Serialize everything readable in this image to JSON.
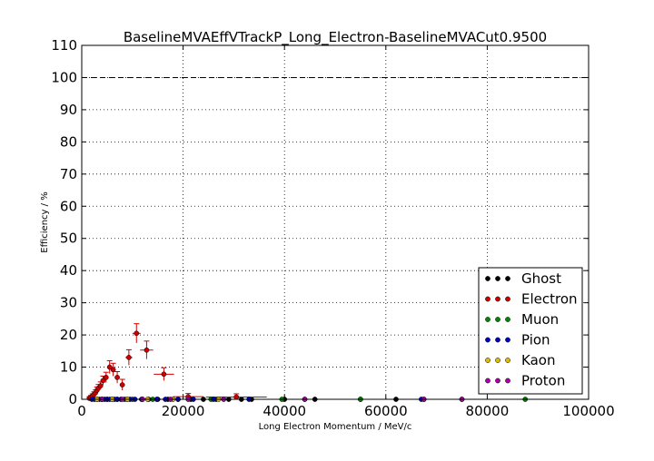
{
  "chart_data": {
    "type": "scatter",
    "title": "BaselineMVAEffVTrackP_Long_Electron-BaselineMVACut0.9500",
    "xlabel": "Long Electron Momentum / MeV/c",
    "ylabel": "Efficiency / %",
    "xlim": [
      0,
      100000
    ],
    "ylim": [
      0,
      110
    ],
    "xticks": [
      0,
      20000,
      40000,
      60000,
      80000,
      100000
    ],
    "xtick_labels": [
      "0",
      "20000",
      "40000",
      "60000",
      "80000",
      "100000"
    ],
    "yticks": [
      0,
      10,
      20,
      30,
      40,
      50,
      60,
      70,
      80,
      90,
      100,
      110
    ],
    "ytick_labels": [
      "0",
      "10",
      "20",
      "30",
      "40",
      "50",
      "60",
      "70",
      "80",
      "90",
      "100",
      "110"
    ],
    "grid": true,
    "reference_line": 100,
    "legend_position": "lower-right",
    "series": [
      {
        "name": "Ghost",
        "color": "#000000",
        "points": [
          {
            "x": 4000,
            "y": 0
          },
          {
            "x": 6000,
            "y": 0
          },
          {
            "x": 9000,
            "y": 0
          },
          {
            "x": 12000,
            "y": 0
          },
          {
            "x": 15000,
            "y": 0
          },
          {
            "x": 17000,
            "y": 0
          },
          {
            "x": 19000,
            "y": 0
          },
          {
            "x": 21500,
            "y": 0
          },
          {
            "x": 24000,
            "y": 0
          },
          {
            "x": 26500,
            "y": 0
          },
          {
            "x": 29000,
            "y": 0
          },
          {
            "x": 31500,
            "y": 0
          },
          {
            "x": 33500,
            "y": 0
          },
          {
            "x": 40000,
            "y": 0
          },
          {
            "x": 46000,
            "y": 0
          },
          {
            "x": 55000,
            "y": 0
          },
          {
            "x": 62000,
            "y": 0
          },
          {
            "x": 67500,
            "y": 0
          },
          {
            "x": 75000,
            "y": 0
          }
        ]
      },
      {
        "name": "Electron",
        "color": "#cc0000",
        "points": [
          {
            "x": 1500,
            "y": 0.3,
            "xerr": 200,
            "yerr": 0.5
          },
          {
            "x": 1800,
            "y": 0.6,
            "xerr": 200,
            "yerr": 0.6
          },
          {
            "x": 2100,
            "y": 1.0,
            "xerr": 200,
            "yerr": 0.7
          },
          {
            "x": 2400,
            "y": 1.5,
            "xerr": 200,
            "yerr": 0.8
          },
          {
            "x": 2700,
            "y": 2.0,
            "xerr": 200,
            "yerr": 0.9
          },
          {
            "x": 3000,
            "y": 2.8,
            "xerr": 200,
            "yerr": 1.0
          },
          {
            "x": 3300,
            "y": 3.5,
            "xerr": 200,
            "yerr": 1.1
          },
          {
            "x": 3700,
            "y": 4.2,
            "xerr": 250,
            "yerr": 1.2
          },
          {
            "x": 4200,
            "y": 5.8,
            "xerr": 300,
            "yerr": 1.4
          },
          {
            "x": 4800,
            "y": 6.8,
            "xerr": 300,
            "yerr": 1.6
          },
          {
            "x": 5500,
            "y": 10.0,
            "xerr": 400,
            "yerr": 2.0
          },
          {
            "x": 6200,
            "y": 9.2,
            "xerr": 400,
            "yerr": 2.0
          },
          {
            "x": 7000,
            "y": 6.8,
            "xerr": 450,
            "yerr": 1.8
          },
          {
            "x": 8000,
            "y": 4.5,
            "xerr": 500,
            "yerr": 1.7
          },
          {
            "x": 9300,
            "y": 13.0,
            "xerr": 700,
            "yerr": 2.4
          },
          {
            "x": 10800,
            "y": 20.5,
            "xerr": 800,
            "yerr": 3.0
          },
          {
            "x": 12800,
            "y": 15.3,
            "xerr": 1300,
            "yerr": 2.8
          },
          {
            "x": 16200,
            "y": 7.8,
            "xerr": 2000,
            "yerr": 2.0
          },
          {
            "x": 21000,
            "y": 0.8,
            "xerr": 3000,
            "yerr": 1.0
          },
          {
            "x": 30500,
            "y": 0.7,
            "xerr": 6000,
            "yerr": 1.0
          }
        ]
      },
      {
        "name": "Muon",
        "color": "#008800",
        "points": [
          {
            "x": 3000,
            "y": 0
          },
          {
            "x": 5000,
            "y": 0
          },
          {
            "x": 7000,
            "y": 0
          },
          {
            "x": 10000,
            "y": 0
          },
          {
            "x": 14000,
            "y": 0
          },
          {
            "x": 25500,
            "y": 0
          },
          {
            "x": 39500,
            "y": 0
          },
          {
            "x": 55000,
            "y": 0
          },
          {
            "x": 87500,
            "y": 0
          }
        ]
      },
      {
        "name": "Pion",
        "color": "#0000cc",
        "points": [
          {
            "x": 2000,
            "y": 0
          },
          {
            "x": 2500,
            "y": 0
          },
          {
            "x": 3000,
            "y": 0
          },
          {
            "x": 3500,
            "y": 0
          },
          {
            "x": 4000,
            "y": 0
          },
          {
            "x": 4500,
            "y": 0
          },
          {
            "x": 5000,
            "y": 0
          },
          {
            "x": 5500,
            "y": 0
          },
          {
            "x": 6000,
            "y": 0
          },
          {
            "x": 6500,
            "y": 0
          },
          {
            "x": 7000,
            "y": 0
          },
          {
            "x": 7700,
            "y": 0
          },
          {
            "x": 8500,
            "y": 0
          },
          {
            "x": 9500,
            "y": 0
          },
          {
            "x": 10500,
            "y": 0
          },
          {
            "x": 11800,
            "y": 0
          },
          {
            "x": 13200,
            "y": 0
          },
          {
            "x": 14800,
            "y": 0
          },
          {
            "x": 16500,
            "y": 0
          },
          {
            "x": 19000,
            "y": 0
          },
          {
            "x": 22000,
            "y": 0
          },
          {
            "x": 26000,
            "y": 0
          },
          {
            "x": 33000,
            "y": 0
          },
          {
            "x": 44000,
            "y": 0
          },
          {
            "x": 67000,
            "y": 0
          }
        ]
      },
      {
        "name": "Kaon",
        "color": "#ddbb00",
        "points": [
          {
            "x": 3000,
            "y": 0
          },
          {
            "x": 6000,
            "y": 0
          },
          {
            "x": 9000,
            "y": 0
          },
          {
            "x": 13000,
            "y": 0
          },
          {
            "x": 18000,
            "y": 0
          },
          {
            "x": 27000,
            "y": 0
          }
        ]
      },
      {
        "name": "Proton",
        "color": "#aa00aa",
        "points": [
          {
            "x": 4000,
            "y": 0
          },
          {
            "x": 8000,
            "y": 0
          },
          {
            "x": 12000,
            "y": 0
          },
          {
            "x": 17500,
            "y": 0
          },
          {
            "x": 21000,
            "y": 0
          },
          {
            "x": 28000,
            "y": 0
          },
          {
            "x": 44000,
            "y": 0
          },
          {
            "x": 67500,
            "y": 0
          },
          {
            "x": 75000,
            "y": 0
          }
        ]
      }
    ]
  }
}
